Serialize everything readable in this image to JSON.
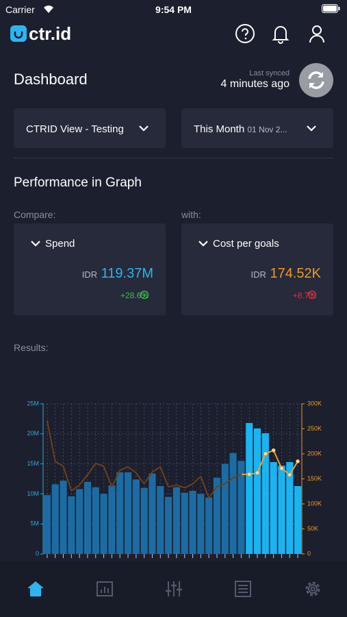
{
  "status": {
    "carrier": "Carrier",
    "time": "9:54 PM"
  },
  "header": {
    "logo": "ctr.id"
  },
  "dashboard": {
    "title": "Dashboard",
    "sync_label": "Last synced",
    "sync_time": "4 minutes ago"
  },
  "filters": {
    "view": "CTRID View - Testing",
    "period": "This Month",
    "period_dates": "01 Nov 2..."
  },
  "section_title": "Performance in Graph",
  "compare": {
    "label": "Compare:",
    "metric": "Spend",
    "currency": "IDR",
    "value": "119.37M",
    "change": "+28.6%"
  },
  "with": {
    "label": "with:",
    "metric": "Cost per goals",
    "currency": "IDR",
    "value": "174.52K",
    "change": "+8.7%"
  },
  "results_label": "Results:",
  "chart_data": {
    "type": "bar_line",
    "categories": [
      null,
      null,
      null,
      null,
      null,
      null,
      null,
      null,
      null,
      null,
      null,
      null,
      null,
      null,
      null,
      null,
      null,
      null,
      null,
      null,
      null,
      null,
      null,
      null,
      null,
      null,
      null,
      null,
      null,
      null,
      null,
      null
    ],
    "series": [
      {
        "name": "Spend",
        "type": "bar",
        "values": [
          9800000,
          11600000,
          12200000,
          9600000,
          10800000,
          12000000,
          11100000,
          10000000,
          11400000,
          13600000,
          13600000,
          12400000,
          11000000,
          13400000,
          11300000,
          9500000,
          11100000,
          10200000,
          10500000,
          10000000,
          9400000,
          12700000,
          15000000,
          16800000,
          15500000,
          21800000,
          20900000,
          20100000,
          15300000,
          14700000,
          15300000,
          11300000
        ],
        "colors": [
          "#1c6ca3",
          "#1c6ca3",
          "#1c6ca3",
          "#1c6ca3",
          "#1c6ca3",
          "#1c6ca3",
          "#1c6ca3",
          "#1c6ca3",
          "#1c6ca3",
          "#1c6ca3",
          "#1c6ca3",
          "#1c6ca3",
          "#1c6ca3",
          "#1c6ca3",
          "#1c6ca3",
          "#1c6ca3",
          "#1c6ca3",
          "#1c6ca3",
          "#1c6ca3",
          "#1c6ca3",
          "#1c6ca3",
          "#1c6ca3",
          "#1c6ca3",
          "#1c6ca3",
          "#1c6ca3",
          "#19b4f2",
          "#19b4f2",
          "#19b4f2",
          "#19b4f2",
          "#19b4f2",
          "#19b4f2",
          "#19b4f2"
        ]
      },
      {
        "name": "Cost per goals",
        "type": "line",
        "axis": "y2",
        "values": [
          266000,
          185000,
          175000,
          126000,
          138000,
          158000,
          181000,
          175000,
          134000,
          167000,
          174000,
          162000,
          140000,
          164000,
          174000,
          134000,
          138000,
          132000,
          140000,
          155000,
          112000,
          134000,
          140000,
          152000,
          159000,
          159000,
          162000,
          200000,
          207000,
          171000,
          158000,
          185000
        ],
        "colors": [
          "#6e3f17",
          "#6e3f17",
          "#6e3f17",
          "#6e3f17",
          "#6e3f17",
          "#6e3f17",
          "#6e3f17",
          "#6e3f17",
          "#6e3f17",
          "#6e3f17",
          "#6e3f17",
          "#6e3f17",
          "#6e3f17",
          "#6e3f17",
          "#6e3f17",
          "#6e3f17",
          "#6e3f17",
          "#6e3f17",
          "#6e3f17",
          "#6e3f17",
          "#6e3f17",
          "#6e3f17",
          "#6e3f17",
          "#6e3f17",
          "#6e3f17",
          "#f2a22a",
          "#f2a22a",
          "#f2a22a",
          "#f2a22a",
          "#f2a22a",
          "#f2a22a",
          "#f2a22a"
        ]
      }
    ],
    "ylim": [
      0,
      25000000
    ],
    "yticks": [
      0,
      {
        "value": 5000000,
        "label": "5M"
      },
      {
        "value": 10000000,
        "label": "10M"
      },
      {
        "value": 15000000,
        "label": "15M"
      },
      {
        "value": 20000000,
        "label": "20M"
      },
      {
        "value": 25000000,
        "label": "25M"
      }
    ],
    "y2lim": [
      0,
      300000
    ],
    "y2ticks": [
      0,
      {
        "value": 50000,
        "label": "50K"
      },
      {
        "value": 100000,
        "label": "100K"
      },
      {
        "value": 150000,
        "label": "150K"
      },
      {
        "value": 200000,
        "label": "200K"
      },
      {
        "value": 250000,
        "label": "250K"
      },
      {
        "value": 300000,
        "label": "300K"
      }
    ],
    "ycolor": "#2ea8e0",
    "y2color": "#f39a1e",
    "grid": true
  }
}
